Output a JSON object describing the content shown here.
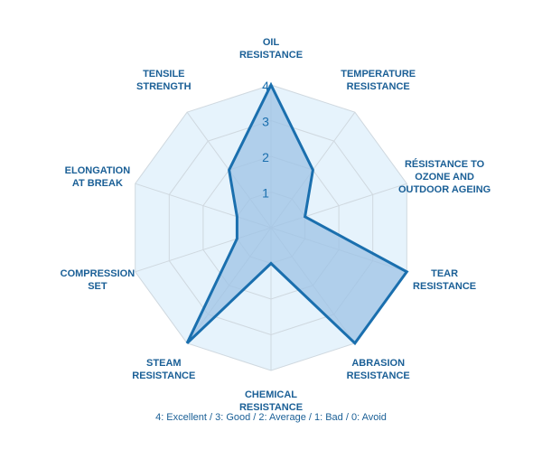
{
  "chart_data": {
    "type": "radar",
    "axes": [
      [
        "OIL",
        "RESISTANCE"
      ],
      [
        "TEMPERATURE",
        "RESISTANCE"
      ],
      [
        "RÉSISTANCE TO",
        "OZONE AND",
        "OUTDOOR AGEING"
      ],
      [
        "TEAR",
        "RESISTANCE"
      ],
      [
        "ABRASION",
        "RESISTANCE"
      ],
      [
        "CHEMICAL",
        "RESISTANCE"
      ],
      [
        "STEAM",
        "RESISTANCE"
      ],
      [
        "COMPRESSION",
        "SET"
      ],
      [
        "ELONGATION",
        "AT BREAK"
      ],
      [
        "TENSILE",
        "STRENGTH"
      ]
    ],
    "values": [
      4,
      2,
      1,
      4,
      4,
      1,
      4,
      1,
      1,
      2
    ],
    "scale": [
      0,
      4
    ],
    "ticks": [
      "1",
      "2",
      "3",
      "4"
    ],
    "legend": "4: Excellent / 3: Good / 2: Average / 1: Bad / 0: Avoid",
    "colors": {
      "background_fill": "#e6f3fc",
      "grid": "#cfd8df",
      "series_fill": "#9dc3e6",
      "series_stroke": "#1a6fae",
      "label": "#1a5f96"
    }
  }
}
